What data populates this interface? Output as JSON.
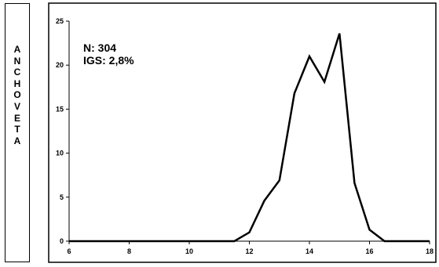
{
  "side_label": [
    "A",
    "N",
    "C",
    "H",
    "O",
    "V",
    "E",
    "T",
    "A"
  ],
  "chart_data": {
    "type": "line",
    "title": "",
    "xlabel": "",
    "ylabel": "",
    "xlim": [
      6,
      18
    ],
    "ylim": [
      0,
      25
    ],
    "x_ticks": [
      6,
      8,
      10,
      12,
      14,
      16,
      18
    ],
    "y_ticks": [
      0,
      5,
      10,
      15,
      20,
      25
    ],
    "grid": false,
    "annotations": [
      "N: 304",
      "IGS: 2,8%"
    ],
    "series": [
      {
        "x": [
          6,
          6.5,
          7,
          7.5,
          8,
          8.5,
          9,
          9.5,
          10,
          10.5,
          11,
          11.5,
          12,
          12.5,
          13,
          13.5,
          14,
          14.5,
          15,
          15.5,
          16,
          16.5,
          17,
          17.5,
          18
        ],
        "y": [
          0,
          0,
          0,
          0,
          0,
          0,
          0,
          0,
          0,
          0,
          0,
          0,
          1.0,
          4.6,
          6.9,
          16.8,
          21.0,
          18.1,
          23.6,
          6.6,
          1.3,
          0,
          0,
          0,
          0
        ],
        "color": "#000000"
      }
    ]
  }
}
